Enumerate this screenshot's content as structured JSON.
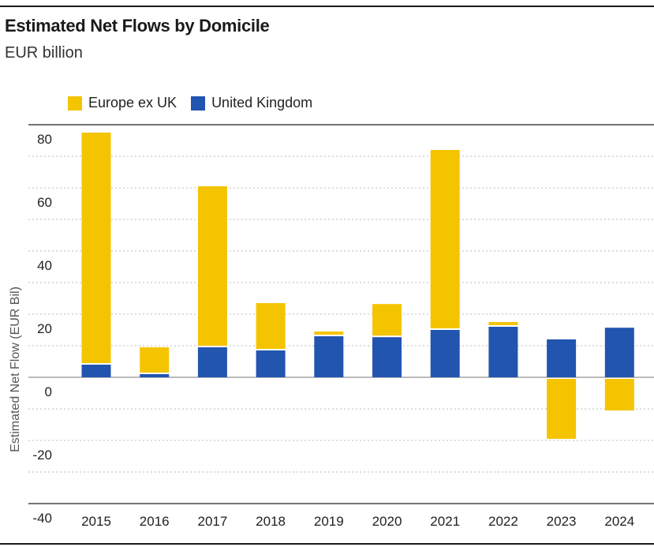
{
  "header": {
    "title": "Estimated Net Flows by Domicile",
    "subtitle": "EUR billion"
  },
  "colors": {
    "europe_ex_uk": "#F5C400",
    "united_kingdom": "#2255B0",
    "grid": "#bbbbbb",
    "axis": "#1a1a1a"
  },
  "legend": [
    {
      "label": "Europe ex UK",
      "color": "#F5C400"
    },
    {
      "label": "United Kingdom",
      "color": "#2255B0"
    }
  ],
  "chart_data": {
    "type": "bar",
    "stacked": true,
    "categories": [
      "2015",
      "2016",
      "2017",
      "2018",
      "2019",
      "2020",
      "2021",
      "2022",
      "2023",
      "2024"
    ],
    "series": [
      {
        "name": "United Kingdom",
        "values": [
          4,
          1,
          9.5,
          8.5,
          13,
          12.7,
          15,
          16,
          12,
          15.7
        ]
      },
      {
        "name": "Europe ex UK",
        "values": [
          73.5,
          8.5,
          51,
          15,
          1.5,
          10.5,
          57,
          1.5,
          -19.5,
          -10.5
        ]
      }
    ],
    "xlabel": "",
    "ylabel": "Estimated Net Flow (EUR Bil)",
    "ylim": [
      -40,
      80
    ],
    "yticks": [
      "80",
      "60",
      "40",
      "20",
      "0",
      "-20",
      "-40"
    ],
    "grid": true,
    "legend_position": "top-left"
  }
}
